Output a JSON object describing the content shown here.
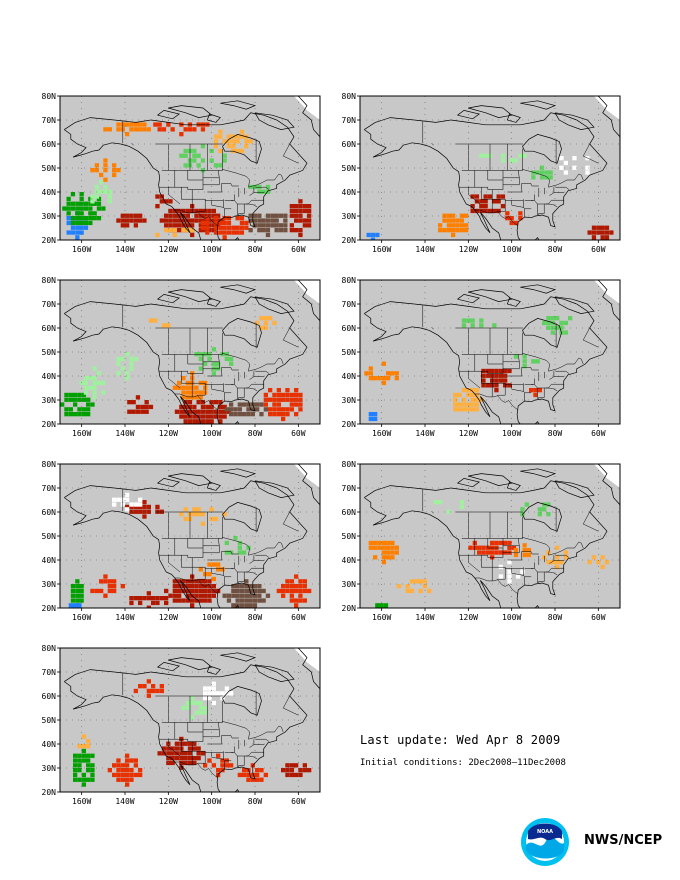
{
  "maps": [
    {
      "id": "panel-1"
    },
    {
      "id": "panel-2"
    },
    {
      "id": "panel-3"
    },
    {
      "id": "panel-4"
    },
    {
      "id": "panel-5"
    },
    {
      "id": "panel-6"
    },
    {
      "id": "panel-7"
    }
  ],
  "axes": {
    "lat_labels": [
      "80N",
      "70N",
      "60N",
      "50N",
      "40N",
      "30N",
      "20N"
    ],
    "lon_labels": [
      "160W",
      "140W",
      "120W",
      "100W",
      "80W",
      "60W"
    ]
  },
  "footer": {
    "last_update": "Last update: Wed Apr 8 2009",
    "initial_conditions": "Initial conditions: 2Dec2008–11Dec2008",
    "agency": "NWS/NCEP",
    "logo_text": "NOAA"
  },
  "colors": {
    "ocean_gray": "#c8c8c8",
    "dark_red": "#b01800",
    "red": "#e83000",
    "orange": "#ff8000",
    "light_orange": "#ffb040",
    "green": "#60d060",
    "light_green": "#a0f0a0",
    "dark_green": "#00a000",
    "blue": "#2080ff",
    "brown": "#705040",
    "white": "#ffffff"
  }
}
